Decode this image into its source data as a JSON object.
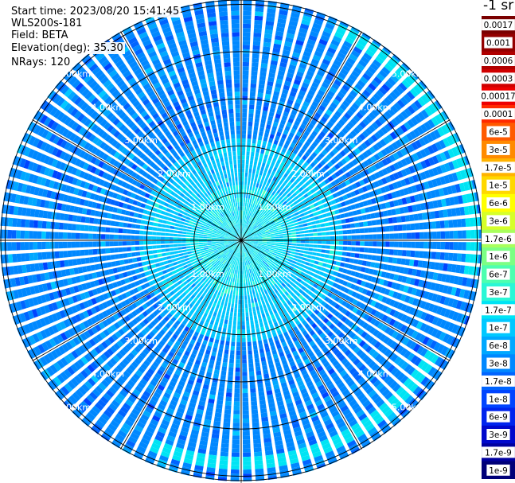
{
  "header": {
    "start_time": "Start time: 2023/08/20 15:41:45",
    "instrument": "WLS200s-181",
    "field": "Field: BETA",
    "elevation": "Elevation(deg): 35.30",
    "nrays": "NRays: 120"
  },
  "colorbar": {
    "unit_label": "-1 sr",
    "labels": [
      "0.0017",
      "0.001",
      "0.0006",
      "0.0003",
      "0.00017",
      "0.0001",
      "6e-5",
      "3e-5",
      "1.7e-5",
      "1e-5",
      "6e-6",
      "3e-6",
      "1.7e-6",
      "1e-6",
      "6e-7",
      "3e-7",
      "1.7e-7",
      "1e-7",
      "6e-8",
      "3e-8",
      "1.7e-8",
      "1e-8",
      "6e-9",
      "3e-9",
      "1.7e-9",
      "1e-9"
    ],
    "colors": [
      "#7a0000",
      "#930000",
      "#b00000",
      "#d00000",
      "#ee0000",
      "#ff2a00",
      "#ff5a00",
      "#ff8a00",
      "#ffb300",
      "#ffd800",
      "#ffff00",
      "#d6ff2a",
      "#a8ff5c",
      "#7cff84",
      "#4dffb0",
      "#2af7d6",
      "#00e4f4",
      "#00c8ff",
      "#00a8ff",
      "#0088ff",
      "#0064ff",
      "#0044ff",
      "#0024ee",
      "#0008cc",
      "#0000a0",
      "#000078"
    ]
  },
  "chart_data": {
    "type": "heatmap",
    "projection": "polar (PPI scan)",
    "quantity": "BETA",
    "n_rays": 120,
    "elevation_deg": 35.3,
    "colormap": "jet",
    "range_ring_labels": [
      "1.00km",
      "2.00km",
      "3.00km",
      "4.00km",
      "5.00km"
    ],
    "range_rings_km": [
      1,
      2,
      3,
      4,
      5
    ],
    "radial_spokes_deg": [
      0,
      30,
      60,
      90,
      120,
      150,
      180,
      210,
      240,
      270,
      300,
      330
    ],
    "dominant_range_by_distance": [
      {
        "from_km": 0.0,
        "to_km": 1.2,
        "value": "1.7e-7"
      },
      {
        "from_km": 1.2,
        "to_km": 2.2,
        "value": "1e-7"
      },
      {
        "from_km": 2.2,
        "to_km": 5.2,
        "value": "3e-8"
      }
    ],
    "features": [
      {
        "description": "arc of enhanced backscatter",
        "range_km": 4.9,
        "azimuth_deg_from": 25,
        "azimuth_deg_to": 100,
        "value": "1.7e-7"
      },
      {
        "description": "arc of enhanced backscatter",
        "range_km": 4.7,
        "azimuth_deg_from": 120,
        "azimuth_deg_to": 205,
        "value": "1.7e-7"
      }
    ]
  }
}
